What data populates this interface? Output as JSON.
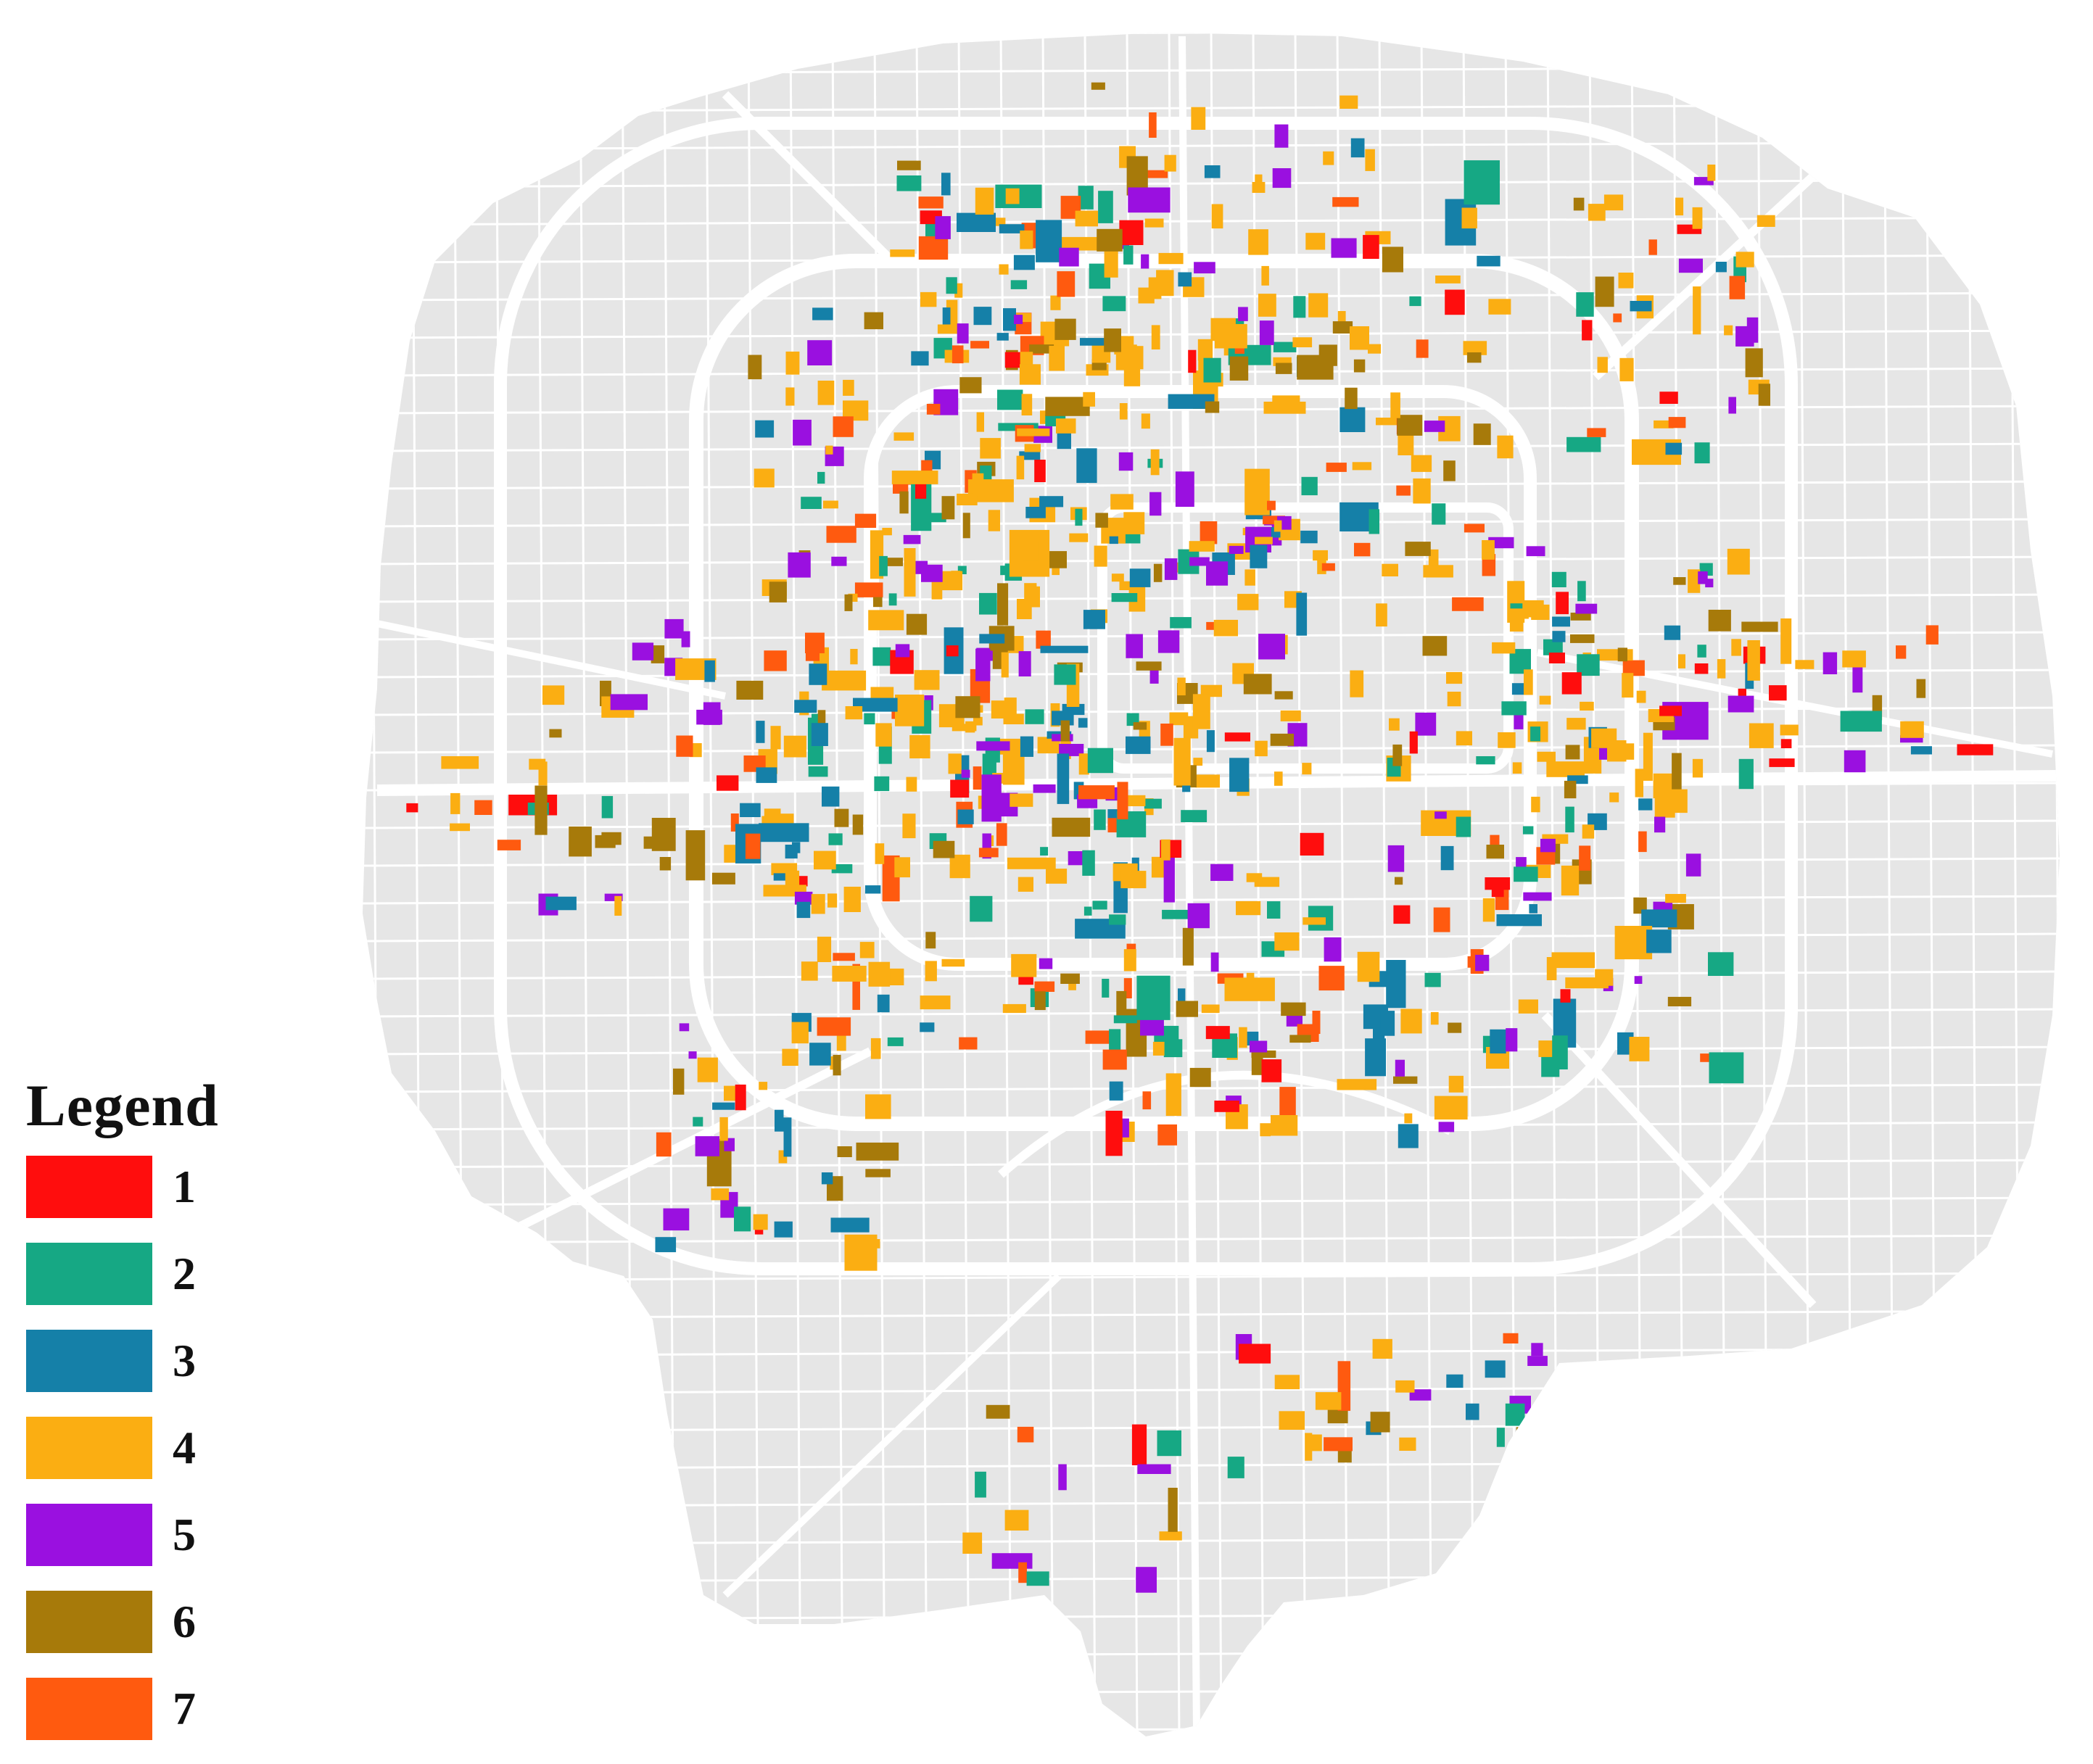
{
  "legend": {
    "title": "Legend",
    "items": [
      {
        "label": "1",
        "color": "#ff0d0d"
      },
      {
        "label": "2",
        "color": "#16a884"
      },
      {
        "label": "3",
        "color": "#1580a8"
      },
      {
        "label": "4",
        "color": "#fbae12"
      },
      {
        "label": "5",
        "color": "#9a10e0"
      },
      {
        "label": "6",
        "color": "#a77a0a"
      },
      {
        "label": "7",
        "color": "#ff5a0f"
      }
    ]
  },
  "map": {
    "land_color": "#e6e6e6",
    "road_color": "#ffffff"
  }
}
